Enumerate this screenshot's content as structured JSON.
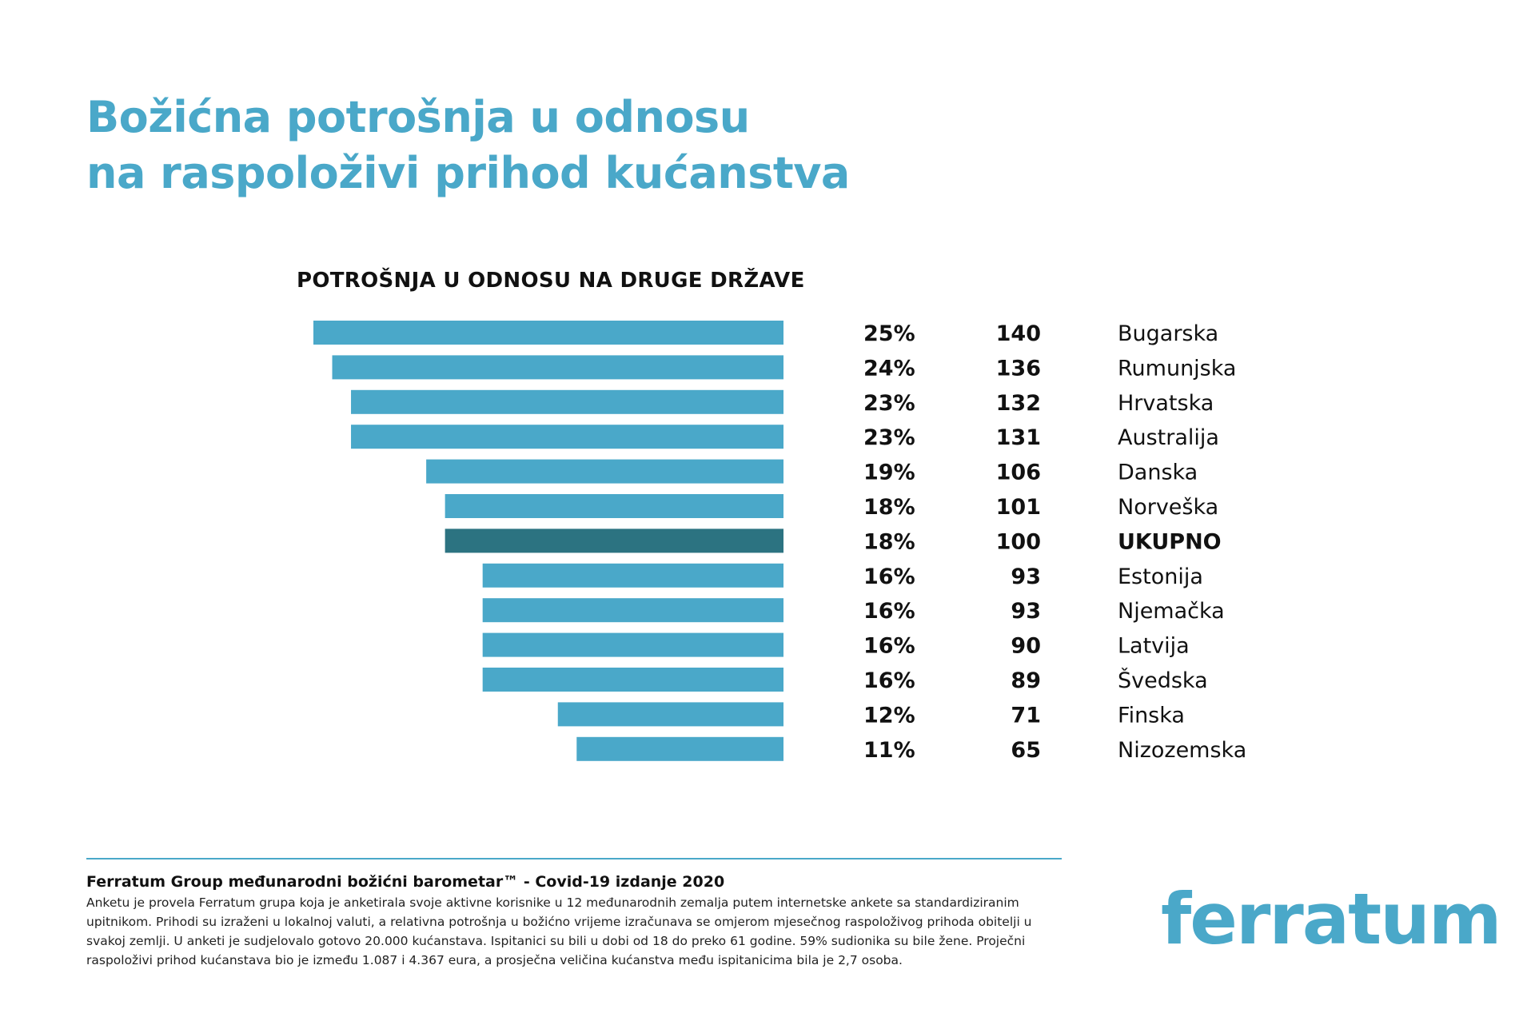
{
  "header": {
    "title_line1": "Božićna potrošnja u odnosu",
    "title_line2": "na raspoloživi prihod kućanstva"
  },
  "chart_data": {
    "type": "bar",
    "title": "POTROŠNJA U ODNOSU NA DRUGE DRŽAVE",
    "categories": [
      "Bugarska",
      "Rumunjska",
      "Hrvatska",
      "Australija",
      "Danska",
      "Norveška",
      "UKUPNO",
      "Estonija",
      "Njemačka",
      "Latvija",
      "Švedska",
      "Finska",
      "Nizozemska"
    ],
    "values": [
      25,
      24,
      23,
      23,
      19,
      18,
      18,
      16,
      16,
      16,
      16,
      12,
      11
    ],
    "value_labels": [
      "25%",
      "24%",
      "23%",
      "23%",
      "19%",
      "18%",
      "18%",
      "16%",
      "16%",
      "16%",
      "16%",
      "12%",
      "11%"
    ],
    "index_values": [
      140,
      136,
      132,
      131,
      106,
      101,
      100,
      93,
      93,
      90,
      89,
      71,
      65
    ],
    "highlight_category": "UKUPNO",
    "orientation": "horizontal",
    "xlim": [
      0,
      25
    ],
    "grid": false,
    "colors": {
      "bar": "#4aa8c9",
      "highlight": "#2c7381"
    }
  },
  "footer": {
    "title": "Ferratum Group međunarodni božićni barometar™ - Covid-19 izdanje 2020",
    "text": "Anketu je provela Ferratum grupa koja je anketirala svoje aktivne korisnike u 12 međunarodnih zemalja putem internetske ankete sa standardiziranim upitnikom. Prihodi su izraženi u lokalnoj valuti, a relativna potrošnja u božićno vrijeme izračunava se omjerom mjesečnog raspoloživog prihoda obitelji u svakoj zemlji. U anketi je sudjelovalo gotovo 20.000 kućanstava. Ispitanici su bili u dobi od 18 do preko 61 godine. 59% sudionika su bile žene. Proječni raspoloživi prihod kućanstava bio je između 1.087 i 4.367 eura, a prosječna veličina kućanstva među ispitanicima bila je 2,7 osoba."
  },
  "logo": {
    "text": "ferratum"
  }
}
